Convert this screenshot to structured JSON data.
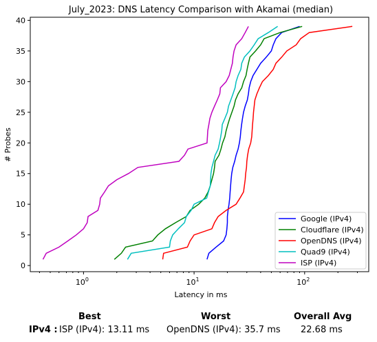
{
  "chart_data": {
    "type": "line",
    "title": "July_2023: DNS Latency Comparison with Akamai (median)",
    "xlabel": "Latency in ms",
    "ylabel": "# Probes",
    "xscale": "log",
    "xlim": [
      0.33,
      380
    ],
    "ylim": [
      -1,
      40.5
    ],
    "xticks": [
      {
        "value": 1,
        "base": "10",
        "exp": "0"
      },
      {
        "value": 10,
        "base": "10",
        "exp": "1"
      },
      {
        "value": 100,
        "base": "10",
        "exp": "2"
      }
    ],
    "yticks": [
      0,
      5,
      10,
      15,
      20,
      25,
      30,
      35,
      40
    ],
    "grid": false,
    "legend_position": "lower-right",
    "series": [
      {
        "name": "Google (IPv4)",
        "color": "#0000ff",
        "points": [
          [
            13.1,
            1
          ],
          [
            13.6,
            2
          ],
          [
            15.8,
            3
          ],
          [
            18.5,
            4
          ],
          [
            19.5,
            5
          ],
          [
            19.8,
            6
          ],
          [
            20.0,
            7
          ],
          [
            20.0,
            8
          ],
          [
            20.3,
            9
          ],
          [
            20.7,
            10
          ],
          [
            21.0,
            11
          ],
          [
            21.2,
            12
          ],
          [
            21.4,
            13
          ],
          [
            21.6,
            14
          ],
          [
            21.9,
            15
          ],
          [
            22.4,
            16
          ],
          [
            23.3,
            17
          ],
          [
            24.0,
            18
          ],
          [
            25.0,
            19
          ],
          [
            25.7,
            20
          ],
          [
            26.2,
            21
          ],
          [
            26.5,
            22
          ],
          [
            26.9,
            23
          ],
          [
            27.4,
            24
          ],
          [
            28.0,
            25
          ],
          [
            29.0,
            26
          ],
          [
            30.3,
            27
          ],
          [
            31.0,
            28
          ],
          [
            31.5,
            29
          ],
          [
            32.5,
            30
          ],
          [
            34.2,
            31
          ],
          [
            37.0,
            32
          ],
          [
            40.0,
            33
          ],
          [
            45.0,
            34
          ],
          [
            50.0,
            35
          ],
          [
            52.0,
            36
          ],
          [
            55.0,
            37
          ],
          [
            62.0,
            38
          ],
          [
            90.0,
            39
          ]
        ]
      },
      {
        "name": "Cloudflare (IPv4)",
        "color": "#008000",
        "points": [
          [
            1.9,
            1
          ],
          [
            2.2,
            2
          ],
          [
            2.4,
            3
          ],
          [
            4.2,
            4
          ],
          [
            4.7,
            5
          ],
          [
            5.5,
            6
          ],
          [
            6.8,
            7
          ],
          [
            8.5,
            8
          ],
          [
            9.2,
            9
          ],
          [
            11.0,
            10
          ],
          [
            12.5,
            11
          ],
          [
            13.4,
            12
          ],
          [
            14.0,
            13
          ],
          [
            14.5,
            14
          ],
          [
            15.0,
            15
          ],
          [
            15.3,
            16
          ],
          [
            15.5,
            17
          ],
          [
            16.8,
            18
          ],
          [
            17.5,
            19
          ],
          [
            18.1,
            20
          ],
          [
            19.0,
            21
          ],
          [
            19.5,
            22
          ],
          [
            20.2,
            23
          ],
          [
            21.0,
            24
          ],
          [
            22.0,
            25
          ],
          [
            23.0,
            26
          ],
          [
            23.7,
            27
          ],
          [
            25.0,
            28
          ],
          [
            27.0,
            29
          ],
          [
            28.0,
            30
          ],
          [
            29.5,
            31
          ],
          [
            30.2,
            32
          ],
          [
            31.0,
            33
          ],
          [
            32.0,
            34
          ],
          [
            36.0,
            35
          ],
          [
            40.0,
            36
          ],
          [
            43.0,
            37
          ],
          [
            60.0,
            38
          ],
          [
            95.0,
            39
          ]
        ]
      },
      {
        "name": "OpenDNS (IPv4)",
        "color": "#ff0000",
        "points": [
          [
            5.2,
            1
          ],
          [
            5.3,
            2
          ],
          [
            8.7,
            3
          ],
          [
            9.2,
            4
          ],
          [
            10.0,
            5
          ],
          [
            14.5,
            6
          ],
          [
            15.3,
            7
          ],
          [
            16.5,
            8
          ],
          [
            19.5,
            9
          ],
          [
            24.0,
            10
          ],
          [
            26.0,
            11
          ],
          [
            28.0,
            12
          ],
          [
            28.5,
            13
          ],
          [
            29.0,
            14
          ],
          [
            29.3,
            15
          ],
          [
            29.8,
            16
          ],
          [
            30.0,
            17
          ],
          [
            30.5,
            18
          ],
          [
            31.2,
            19
          ],
          [
            32.5,
            20
          ],
          [
            33.2,
            21
          ],
          [
            33.5,
            22
          ],
          [
            33.8,
            23
          ],
          [
            34.2,
            24
          ],
          [
            34.5,
            25
          ],
          [
            35.0,
            26
          ],
          [
            35.5,
            27
          ],
          [
            37.0,
            28
          ],
          [
            39.0,
            29
          ],
          [
            41.5,
            30
          ],
          [
            47.0,
            31
          ],
          [
            52.0,
            32
          ],
          [
            55.0,
            33
          ],
          [
            62.0,
            34
          ],
          [
            69.0,
            35
          ],
          [
            84.0,
            36
          ],
          [
            92.0,
            37
          ],
          [
            110.0,
            38
          ],
          [
            270.0,
            39
          ]
        ]
      },
      {
        "name": "Quad9 (IPv4)",
        "color": "#00bfbf",
        "points": [
          [
            2.5,
            1
          ],
          [
            2.7,
            2
          ],
          [
            6.0,
            3
          ],
          [
            6.1,
            4
          ],
          [
            6.4,
            5
          ],
          [
            7.2,
            6
          ],
          [
            8.2,
            7
          ],
          [
            8.5,
            8
          ],
          [
            9.4,
            9
          ],
          [
            10.0,
            10
          ],
          [
            13.0,
            11
          ],
          [
            13.5,
            12
          ],
          [
            14.0,
            13
          ],
          [
            14.1,
            14
          ],
          [
            14.2,
            15
          ],
          [
            14.5,
            16
          ],
          [
            15.0,
            17
          ],
          [
            15.5,
            18
          ],
          [
            16.5,
            19
          ],
          [
            17.0,
            20
          ],
          [
            17.4,
            21
          ],
          [
            17.8,
            22
          ],
          [
            18.0,
            23
          ],
          [
            19.0,
            24
          ],
          [
            20.0,
            25
          ],
          [
            20.5,
            26
          ],
          [
            21.5,
            27
          ],
          [
            22.5,
            28
          ],
          [
            23.5,
            29
          ],
          [
            24.0,
            30
          ],
          [
            25.0,
            31
          ],
          [
            26.5,
            32
          ],
          [
            27.0,
            33
          ],
          [
            28.5,
            34
          ],
          [
            32.0,
            35
          ],
          [
            35.0,
            36
          ],
          [
            38.0,
            37
          ],
          [
            47.0,
            38
          ],
          [
            57.0,
            39
          ]
        ]
      },
      {
        "name": "ISP (IPv4)",
        "color": "#bf00bf",
        "points": [
          [
            0.43,
            1
          ],
          [
            0.46,
            2
          ],
          [
            0.6,
            3
          ],
          [
            0.72,
            4
          ],
          [
            0.86,
            5
          ],
          [
            1.0,
            6
          ],
          [
            1.08,
            7
          ],
          [
            1.1,
            8
          ],
          [
            1.35,
            9
          ],
          [
            1.4,
            10
          ],
          [
            1.42,
            11
          ],
          [
            1.55,
            12
          ],
          [
            1.68,
            13
          ],
          [
            2.0,
            14
          ],
          [
            2.55,
            15
          ],
          [
            3.1,
            16
          ],
          [
            7.3,
            17
          ],
          [
            8.2,
            18
          ],
          [
            8.8,
            19
          ],
          [
            13.1,
            20
          ],
          [
            13.2,
            21
          ],
          [
            13.3,
            22
          ],
          [
            13.6,
            23
          ],
          [
            13.9,
            24
          ],
          [
            14.5,
            25
          ],
          [
            15.3,
            26
          ],
          [
            16.2,
            27
          ],
          [
            17.1,
            28
          ],
          [
            17.3,
            29
          ],
          [
            19.5,
            30
          ],
          [
            20.8,
            31
          ],
          [
            21.5,
            32
          ],
          [
            22.2,
            33
          ],
          [
            22.5,
            34
          ],
          [
            23.0,
            35
          ],
          [
            24.0,
            36
          ],
          [
            27.0,
            37
          ],
          [
            29.0,
            38
          ],
          [
            31.0,
            39
          ]
        ]
      }
    ]
  },
  "summary": {
    "headers": {
      "best": "Best",
      "worst": "Worst",
      "avg": "Overall Avg"
    },
    "row_label": "IPv4 :",
    "best": "ISP (IPv4): 13.11 ms",
    "worst": "OpenDNS (IPv4): 35.7 ms",
    "avg": "22.68 ms"
  }
}
